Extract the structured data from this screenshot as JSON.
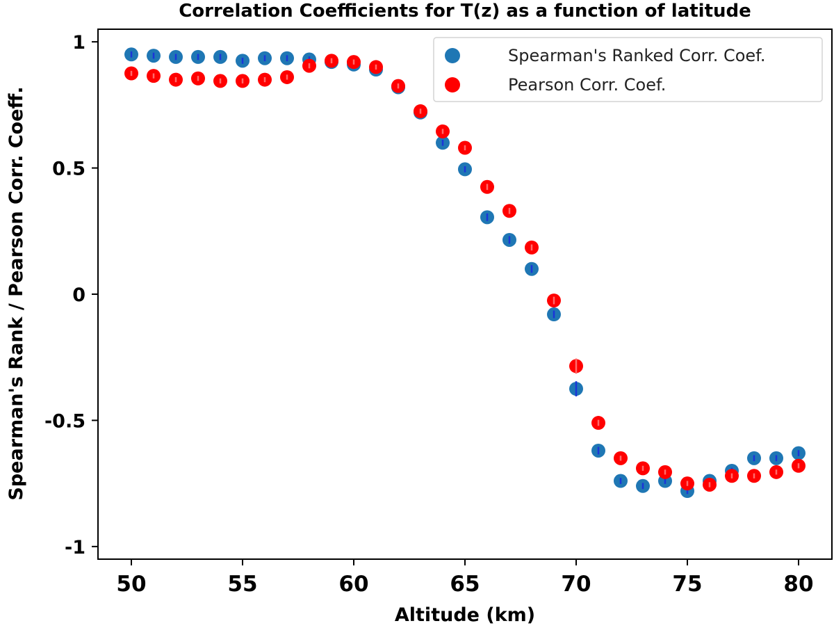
{
  "chart_data": {
    "type": "scatter",
    "title": "Correlation Coefficients for T(z) as a function of latitude",
    "xlabel": "Altitude (km)",
    "ylabel": "Spearman's Rank / Pearson Corr. Coeff.",
    "xlim": [
      48.5,
      81.5
    ],
    "ylim": [
      -1.05,
      1.05
    ],
    "xticks": [
      50,
      55,
      60,
      65,
      70,
      75,
      80
    ],
    "xtick_labels": [
      "50",
      "55",
      "60",
      "65",
      "70",
      "75",
      "80"
    ],
    "yticks": [
      1,
      0.5,
      0,
      -0.5,
      -1
    ],
    "ytick_labels": [
      "1",
      "0.5",
      "0",
      "-0.5",
      "-1"
    ],
    "legend_position": "top-right",
    "grid": false,
    "x": [
      50,
      51,
      52,
      53,
      54,
      55,
      56,
      57,
      58,
      59,
      60,
      61,
      62,
      63,
      64,
      65,
      66,
      67,
      68,
      69,
      70,
      71,
      72,
      73,
      74,
      75,
      76,
      77,
      78,
      79,
      80
    ],
    "series": [
      {
        "name": "Spearman's Ranked Corr. Coef.",
        "color": "#1f77b4",
        "errorbar_color": "#1a35d8",
        "values": [
          0.95,
          0.945,
          0.94,
          0.94,
          0.94,
          0.925,
          0.935,
          0.935,
          0.93,
          0.92,
          0.91,
          0.89,
          0.82,
          0.72,
          0.6,
          0.495,
          0.305,
          0.215,
          0.1,
          -0.08,
          -0.375,
          -0.62,
          -0.74,
          -0.76,
          -0.74,
          -0.78,
          -0.74,
          -0.7,
          -0.65,
          -0.65,
          -0.63
        ],
        "errors": [
          0.012,
          0.012,
          0.012,
          0.012,
          0.012,
          0.012,
          0.012,
          0.012,
          0.012,
          0.012,
          0.012,
          0.012,
          0.012,
          0.012,
          0.012,
          0.012,
          0.015,
          0.015,
          0.015,
          0.015,
          0.03,
          0.015,
          0.012,
          0.012,
          0.012,
          0.012,
          0.012,
          0.012,
          0.012,
          0.012,
          0.012
        ]
      },
      {
        "name": "Pearson Corr. Coef.",
        "color": "#ff0000",
        "errorbar_color": "#ff6a6a",
        "values": [
          0.875,
          0.865,
          0.85,
          0.855,
          0.845,
          0.845,
          0.85,
          0.86,
          0.905,
          0.925,
          0.92,
          0.9,
          0.825,
          0.725,
          0.645,
          0.58,
          0.425,
          0.33,
          0.185,
          -0.025,
          -0.285,
          -0.51,
          -0.65,
          -0.69,
          -0.705,
          -0.75,
          -0.755,
          -0.72,
          -0.72,
          -0.705,
          -0.68
        ],
        "errors": [
          0.01,
          0.01,
          0.01,
          0.01,
          0.01,
          0.01,
          0.01,
          0.01,
          0.01,
          0.01,
          0.01,
          0.01,
          0.01,
          0.01,
          0.01,
          0.01,
          0.012,
          0.012,
          0.012,
          0.015,
          0.03,
          0.012,
          0.01,
          0.01,
          0.01,
          0.01,
          0.01,
          0.01,
          0.01,
          0.01,
          0.01
        ]
      }
    ]
  }
}
